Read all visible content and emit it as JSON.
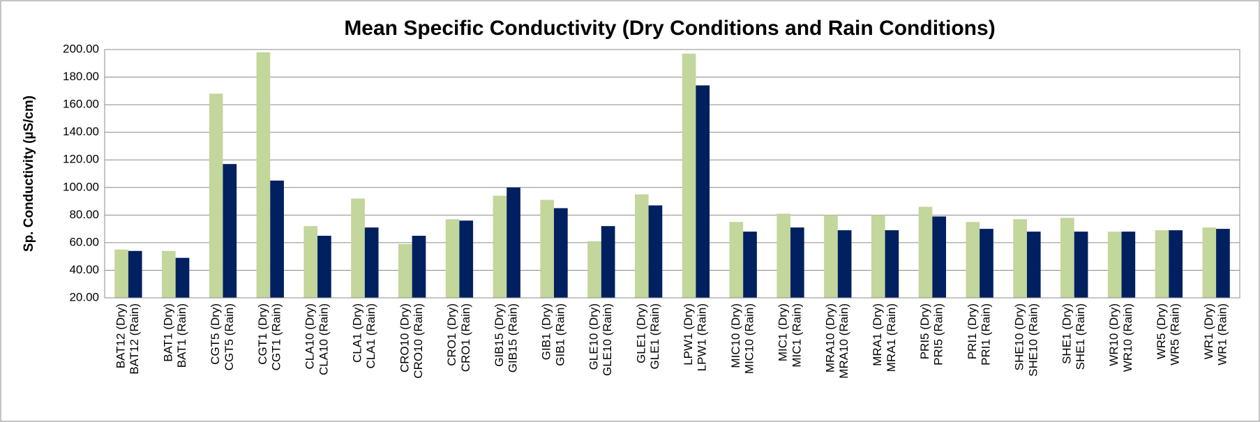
{
  "chart_data": {
    "type": "bar",
    "title": "Mean Specific Conductivity (Dry Conditions and Rain Conditions)",
    "y_label": "Sp. Conductivity  (µS/cm)",
    "categories": [
      "BAT12  (Dry)",
      "BAT12  (Rain)",
      "BAT1  (Dry)",
      "BAT1  (Rain)",
      "CGT5  (Dry)",
      "CGT5  (Rain)",
      "CGT1  (Dry)",
      "CGT1  (Rain)",
      "CLA10  (Dry)",
      "CLA10  (Rain)",
      "CLA1  (Dry)",
      "CLA1  (Rain)",
      "CRO10  (Dry)",
      "CRO10 (Rain)",
      "CRO1  (Dry)",
      "CRO1  (Rain)",
      "GIB15  (Dry)",
      "GIB15  (Rain)",
      "GIB1  (Dry)",
      "GIB1  (Rain)",
      "GLE10  (Dry)",
      "GLE10  (Rain)",
      "GLE1  (Dry)",
      "GLE1  (Rain)",
      "LPW1  (Dry)",
      "LPW1  (Rain)",
      "MIC10  (Dry)",
      "MIC10  (Rain)",
      "MIC1  (Dry)",
      "MIC1  (Rain)",
      "MRA10  (Dry)",
      "MRA10  (Rain)",
      "MRA1  (Dry)",
      "MRA1  (Rain)",
      "PRI5  (Dry)",
      "PRI5  (Rain)",
      "PRI1  (Dry)",
      "PRI1  (Rain)",
      "SHE10  (Dry)",
      "SHE10  (Rain)",
      "SHE1  (Dry)",
      "SHE1  (Rain)",
      "WR10  (Dry)",
      "WR10  (Rain)",
      "WR5  (Dry)",
      "WR5  (Rain)",
      "WR1  (Dry)",
      "WR1  (Rain)"
    ],
    "values": [
      55,
      54,
      54,
      49,
      168,
      117,
      198,
      105,
      72,
      65,
      92,
      71,
      59,
      65,
      77,
      76,
      94,
      100,
      91,
      85,
      61,
      72,
      95,
      87,
      197,
      174,
      75,
      68,
      81,
      71,
      80,
      69,
      80,
      69,
      86,
      79,
      75,
      70,
      77,
      68,
      78,
      68,
      68,
      68,
      69,
      69,
      71,
      70
    ],
    "colors": [
      "#c3d69b",
      "#002060"
    ],
    "ylim": [
      20,
      200
    ],
    "yticks": [
      {
        "value": 20,
        "label": "20.00"
      },
      {
        "value": 40,
        "label": "40.00"
      },
      {
        "value": 60,
        "label": "60.00"
      },
      {
        "value": 80,
        "label": "80.00"
      },
      {
        "value": 100,
        "label": "100.00"
      },
      {
        "value": 120,
        "label": "120.00"
      },
      {
        "value": 140,
        "label": "140.00"
      },
      {
        "value": 160,
        "label": "160.00"
      },
      {
        "value": 180,
        "label": "180.00"
      },
      {
        "value": 200,
        "label": "200.00"
      }
    ],
    "grid": true
  }
}
